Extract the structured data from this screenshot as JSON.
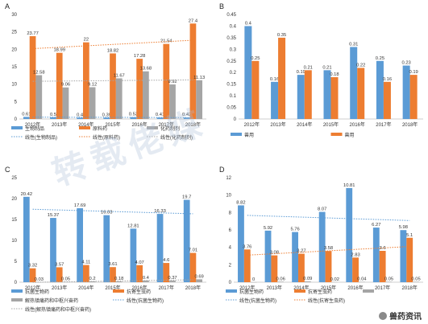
{
  "chart_data": [
    {
      "id": "A",
      "type": "bar",
      "panel_label": "A",
      "categories": [
        "2012年",
        "2013年",
        "2014年",
        "2015年",
        "2016年",
        "2017年",
        "2018年"
      ],
      "ylim": [
        0,
        30
      ],
      "yticks": [
        0,
        5,
        10,
        15,
        20,
        25,
        30
      ],
      "grid": false,
      "legend_position": "bottom",
      "series": [
        {
          "name": "生物制品",
          "color": "#5b9bd5",
          "values": [
            0.61,
            0.5,
            0.4,
            0.39,
            0.53,
            0.41,
            0.42
          ]
        },
        {
          "name": "原料药",
          "color": "#ed7d31",
          "values": [
            23.77,
            18.99,
            22,
            18.82,
            17.28,
            21.54,
            27.4
          ]
        },
        {
          "name": "化药制剂",
          "color": "#a5a5a5",
          "values": [
            12.58,
            9.06,
            9.12,
            11.67,
            13.68,
            9.92,
            11.13
          ]
        }
      ],
      "data_labels": [
        [
          "0.61",
          "0.5",
          "0.4",
          "0.39",
          "0.53",
          "0.41",
          "0.42"
        ],
        [
          "23.77",
          "18.99",
          "22",
          "18.82",
          "17.28",
          "21.54",
          "27.4"
        ],
        [
          "12.58",
          "9.06",
          "9.12",
          "11.67",
          "13.68",
          "9.92",
          "11.13"
        ]
      ],
      "trendlines": [
        {
          "name": "线性(生物制品)",
          "color": "#5b9bd5",
          "series_index": 0
        },
        {
          "name": "线性(原料药)",
          "color": "#ed7d31",
          "series_index": 1
        },
        {
          "name": "线性(化药制剂)",
          "color": "#a5a5a5",
          "series_index": 2
        }
      ]
    },
    {
      "id": "B",
      "type": "bar",
      "panel_label": "B",
      "categories": [
        "2012年",
        "2013年",
        "2014年",
        "2015年",
        "2016年",
        "2017年",
        "2018年"
      ],
      "ylim": [
        0,
        0.45
      ],
      "yticks": [
        0,
        0.05,
        0.1,
        0.15,
        0.2,
        0.25,
        0.3,
        0.35,
        0.4,
        0.45
      ],
      "grid": false,
      "legend_position": "bottom",
      "series": [
        {
          "name": "兽用",
          "color": "#5b9bd5",
          "values": [
            0.4,
            0.16,
            0.19,
            0.21,
            0.31,
            0.25,
            0.23
          ]
        },
        {
          "name": "兽用",
          "color": "#ed7d31",
          "values": [
            0.25,
            0.35,
            0.21,
            0.18,
            0.22,
            0.16,
            0.19
          ]
        }
      ],
      "data_labels": [
        [
          "0.4",
          "0.16",
          "0.19",
          "0.21",
          "0.31",
          "0.25",
          "0.23"
        ],
        [
          "0.25",
          "0.35",
          "0.21",
          "0.18",
          "0.22",
          "0.16",
          "0.19"
        ]
      ],
      "trendlines": []
    },
    {
      "id": "C",
      "type": "bar",
      "panel_label": "C",
      "categories": [
        "2012年",
        "2013年",
        "2014年",
        "2015年",
        "2016年",
        "2017年",
        "2018年"
      ],
      "ylim": [
        0,
        25
      ],
      "yticks": [
        0,
        5,
        10,
        15,
        20,
        25
      ],
      "grid": false,
      "legend_position": "bottom",
      "series": [
        {
          "name": "抗菌生物药",
          "color": "#5b9bd5",
          "values": [
            20.42,
            15.37,
            17.69,
            16.03,
            12.81,
            16.33,
            19.7
          ]
        },
        {
          "name": "抗寄生虫药",
          "color": "#ed7d31",
          "values": [
            3.32,
            3.57,
            4.11,
            3.61,
            4.07,
            4.6,
            7.01
          ]
        },
        {
          "name": "解热镇痛药和中枢兴奋药",
          "color": "#a5a5a5",
          "values": [
            0.03,
            0.05,
            0.2,
            0.18,
            0.4,
            0.37,
            0.69
          ]
        }
      ],
      "data_labels": [
        [
          "20.42",
          "15.37",
          "17.69",
          "16.03",
          "12.81",
          "16.33",
          "19.7"
        ],
        [
          "3.32",
          "3.57",
          "4.11",
          "3.61",
          "4.07",
          "4.6",
          "7.01"
        ],
        [
          "0.03",
          "0.05",
          "0.2",
          "0.18",
          "0.4",
          "0.37",
          "0.69"
        ]
      ],
      "trendlines": [
        {
          "name": "线性(抗菌生物药)",
          "color": "#5b9bd5",
          "series_index": 0
        },
        {
          "name": "线性(解热镇痛药和中枢兴奋药)",
          "color": "#a5a5a5",
          "series_index": 2
        }
      ]
    },
    {
      "id": "D",
      "type": "bar",
      "panel_label": "D",
      "categories": [
        "2012年",
        "2013年",
        "2014年",
        "2015年",
        "2016年",
        "2017年",
        "2018年"
      ],
      "ylim": [
        0,
        12
      ],
      "yticks": [
        0,
        2,
        4,
        6,
        8,
        10,
        12
      ],
      "grid": false,
      "legend_position": "bottom",
      "series": [
        {
          "name": "抗菌生物药",
          "color": "#5b9bd5",
          "values": [
            8.82,
            5.92,
            5.76,
            8.07,
            10.81,
            6.27,
            5.98
          ]
        },
        {
          "name": "抗寄生虫药",
          "color": "#ed7d31",
          "values": [
            3.76,
            3.08,
            3.27,
            3.58,
            2.83,
            3.6,
            5.1
          ]
        },
        {
          "name": "",
          "color": "#a5a5a5",
          "values": [
            0,
            0.06,
            0.09,
            0.02,
            0.04,
            0.05,
            0.05
          ]
        }
      ],
      "data_labels": [
        [
          "8.82",
          "5.92",
          "5.76",
          "8.07",
          "10.81",
          "6.27",
          "5.98"
        ],
        [
          "3.76",
          "3.08",
          "3.27",
          "3.58",
          "2.83",
          "3.6",
          "5.1"
        ],
        [
          "0",
          "0.06",
          "0.09",
          "0.02",
          "0.04",
          "0.05",
          "0.05"
        ]
      ],
      "trendlines": [
        {
          "name": "线性(抗菌生物药)",
          "color": "#5b9bd5",
          "series_index": 0
        },
        {
          "name": "线性(抗寄生虫药)",
          "color": "#ed7d31",
          "series_index": 1
        }
      ]
    }
  ],
  "watermark": {
    "text": "转载佬媒",
    "subtext": "FRANKE MEDIA"
  },
  "credit": {
    "text": "兽药资讯"
  }
}
